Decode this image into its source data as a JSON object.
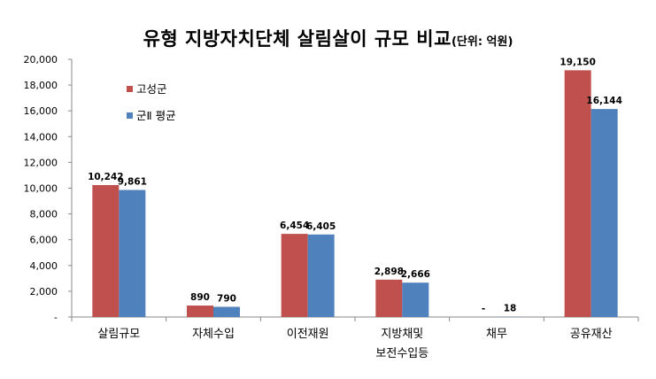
{
  "chart_data": {
    "type": "bar",
    "title": "유형 지방자치단체 살림살이 규모 비교",
    "subtitle": "(단위: 억원)",
    "categories": [
      "살림규모",
      "자체수입",
      "이전재원",
      "지방채및\n보전수입등",
      "채무",
      "공유재산"
    ],
    "series": [
      {
        "name": "고성군",
        "color": "#C0504D",
        "values": [
          10242,
          890,
          6454,
          2898,
          0,
          19150
        ],
        "labels": [
          "10,242",
          "890",
          "6,454",
          "2,898",
          "-",
          "19,150"
        ]
      },
      {
        "name": "군Ⅱ 평균",
        "color": "#4F81BD",
        "values": [
          9861,
          790,
          6405,
          2666,
          18,
          16144
        ],
        "labels": [
          "9,861",
          "790",
          "6,405",
          "2,666",
          "18",
          "16,144"
        ]
      }
    ],
    "ylim": [
      0,
      20000
    ],
    "yticks": [
      0,
      2000,
      4000,
      6000,
      8000,
      10000,
      12000,
      14000,
      16000,
      18000,
      20000
    ],
    "ytick_labels": [
      "-",
      "2,000",
      "4,000",
      "6,000",
      "8,000",
      "10,000",
      "12,000",
      "14,000",
      "16,000",
      "18,000",
      "20,000"
    ],
    "grid": false,
    "legend": "top-left"
  }
}
